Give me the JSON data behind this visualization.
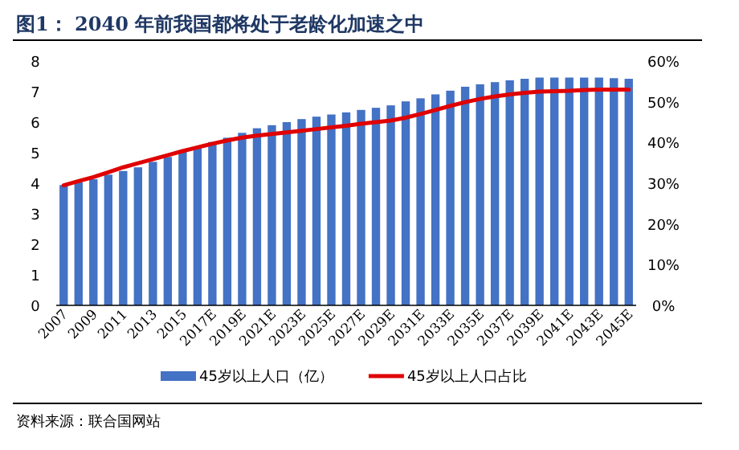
{
  "chart_data": {
    "type": "bar",
    "title": "图1：  2040 年前我国都将处于老龄化加速之中",
    "categories": [
      "2007",
      null,
      "2009",
      null,
      "2011",
      null,
      "2013",
      null,
      "2015",
      null,
      "2017E",
      null,
      "2019E",
      null,
      "2021E",
      null,
      "2023E",
      null,
      "2025E",
      null,
      "2027E",
      null,
      "2029E",
      null,
      "2031E",
      null,
      "2033E",
      null,
      "2035E",
      null,
      "2037E",
      null,
      "2039E",
      null,
      "2041E",
      null,
      "2043E",
      null,
      "2045E"
    ],
    "series": [
      {
        "name": "45岁以上人口（亿）",
        "color": "#4472c4",
        "values": [
          3.94,
          4.03,
          4.13,
          4.28,
          4.4,
          4.52,
          4.7,
          4.86,
          5.04,
          5.18,
          5.35,
          5.49,
          5.65,
          5.8,
          5.9,
          6.0,
          6.1,
          6.18,
          6.25,
          6.32,
          6.4,
          6.47,
          6.55,
          6.68,
          6.78,
          6.91,
          7.03,
          7.16,
          7.24,
          7.31,
          7.37,
          7.42,
          7.46,
          7.46,
          7.46,
          7.46,
          7.46,
          7.44,
          7.42
        ]
      },
      {
        "name": "45岁以上人口占比",
        "type": "line",
        "axis": "y2",
        "color": "#e00000",
        "values": [
          29.5,
          30.5,
          31.5,
          32.7,
          33.9,
          34.9,
          35.9,
          36.9,
          37.9,
          38.8,
          39.7,
          40.5,
          41.2,
          41.7,
          42.1,
          42.5,
          42.9,
          43.3,
          43.7,
          44.1,
          44.6,
          45.0,
          45.4,
          46.1,
          47.0,
          48.0,
          49.0,
          49.9,
          50.7,
          51.3,
          51.8,
          52.2,
          52.5,
          52.6,
          52.7,
          52.9,
          53.0,
          53.0,
          53.0
        ]
      }
    ],
    "ylim": [
      0,
      8
    ],
    "yticks": [
      0,
      1,
      2,
      3,
      4,
      5,
      6,
      7,
      8
    ],
    "y2lim": [
      0,
      60
    ],
    "y2ticks": [
      {
        "value": 0,
        "label": "0%"
      },
      {
        "value": 10,
        "label": "10%"
      },
      {
        "value": 20,
        "label": "20%"
      },
      {
        "value": 30,
        "label": "30%"
      },
      {
        "value": 40,
        "label": "40%"
      },
      {
        "value": 50,
        "label": "50%"
      },
      {
        "value": 60,
        "label": "60%"
      }
    ],
    "grid": false,
    "legend": "bottom",
    "marker": "none",
    "line_style": "solid",
    "annotations": [
      "资料来源：联合国网站"
    ]
  }
}
